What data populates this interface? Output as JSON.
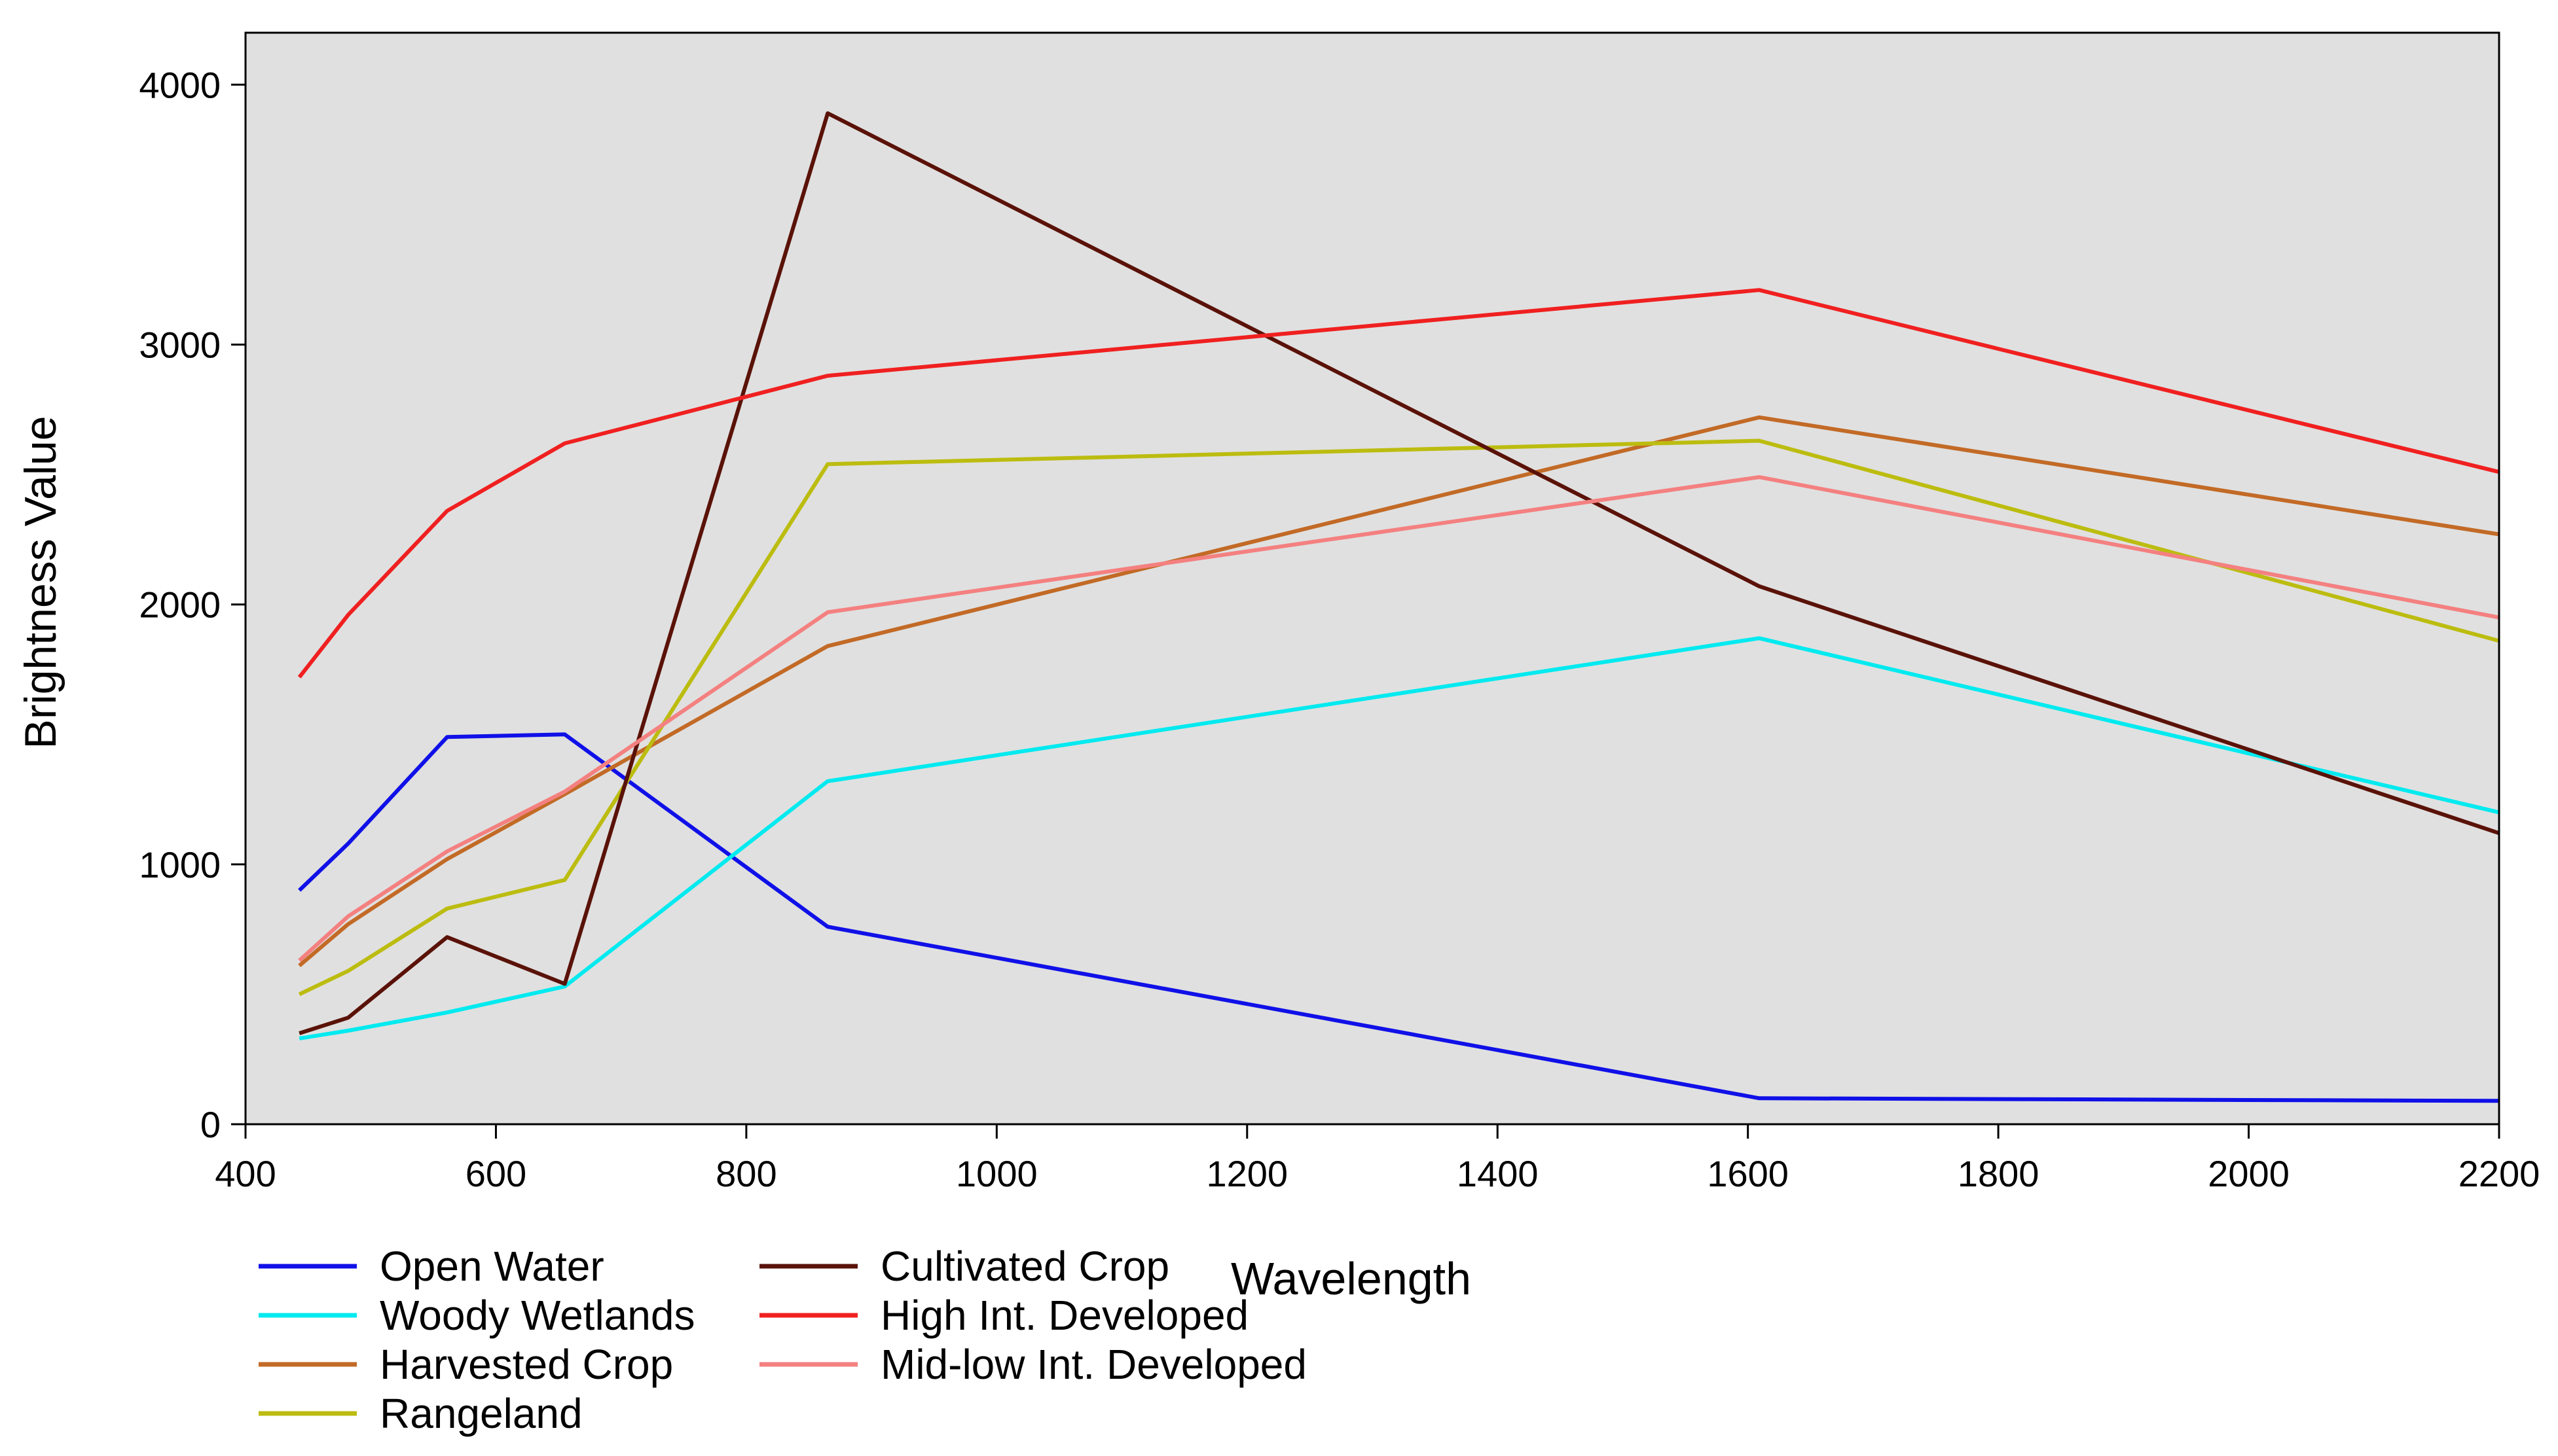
{
  "chart_data": {
    "type": "line",
    "title": "",
    "xlabel": "Wavelength",
    "ylabel": "Brightness Value",
    "xlim": [
      400,
      2200
    ],
    "ylim": [
      0,
      4200
    ],
    "xticks": [
      400,
      600,
      800,
      1000,
      1200,
      1400,
      1600,
      1800,
      2000,
      2200
    ],
    "yticks": [
      0,
      1000,
      2000,
      3000,
      4000
    ],
    "grid": false,
    "plot_background": "#e0e0e0",
    "legend_position": "bottom-left",
    "series": [
      {
        "name": "Open Water",
        "color": "#1010e8",
        "x": [
          443,
          482,
          561,
          655,
          865,
          1609,
          1900,
          2200
        ],
        "y": [
          900,
          1080,
          1490,
          1500,
          760,
          100,
          95,
          90
        ]
      },
      {
        "name": "Woody Wetlands",
        "color": "#00eaf0",
        "x": [
          443,
          482,
          561,
          655,
          865,
          1609,
          2200
        ],
        "y": [
          330,
          360,
          430,
          530,
          1320,
          1870,
          1200
        ]
      },
      {
        "name": "Harvested Crop",
        "color": "#c26a26",
        "x": [
          443,
          482,
          561,
          655,
          865,
          1609,
          2200
        ],
        "y": [
          610,
          770,
          1020,
          1270,
          1840,
          2720,
          2270
        ]
      },
      {
        "name": "Rangeland",
        "color": "#bcbc10",
        "x": [
          443,
          482,
          561,
          655,
          865,
          1609,
          2200
        ],
        "y": [
          500,
          590,
          830,
          940,
          2540,
          2630,
          1860
        ]
      },
      {
        "name": "Cultivated Crop",
        "color": "#5a1208",
        "x": [
          443,
          482,
          561,
          655,
          865,
          1609,
          2200
        ],
        "y": [
          350,
          410,
          720,
          540,
          3890,
          2070,
          1120
        ]
      },
      {
        "name": "High Int. Developed",
        "color": "#f02020",
        "x": [
          443,
          482,
          561,
          655,
          865,
          1609,
          2200
        ],
        "y": [
          1720,
          1960,
          2360,
          2620,
          2880,
          3210,
          2510
        ]
      },
      {
        "name": "Mid-low Int. Developed",
        "color": "#f48080",
        "x": [
          443,
          482,
          561,
          655,
          865,
          1609,
          2200
        ],
        "y": [
          630,
          800,
          1050,
          1280,
          1970,
          2490,
          1950
        ]
      }
    ]
  }
}
